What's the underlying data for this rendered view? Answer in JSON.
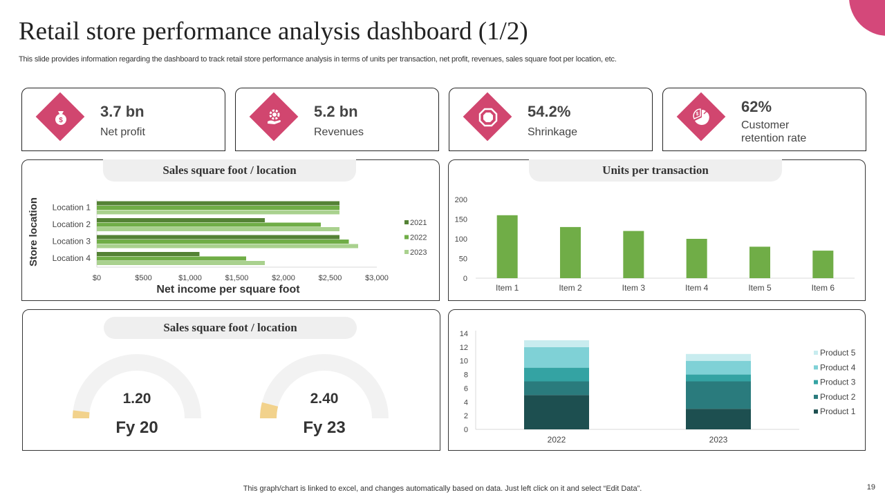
{
  "header": {
    "title": "Retail store performance analysis dashboard (1/2)",
    "subtitle": "This slide provides information regarding the dashboard to track retail store performance analysis in terms of units per transaction, net profit, revenues, sales square foot per location, etc."
  },
  "kpis": [
    {
      "value": "3.7 bn",
      "label": "Net profit",
      "icon": "money-bag-icon"
    },
    {
      "value": "5.2 bn",
      "label": "Revenues",
      "icon": "gear-hand-icon"
    },
    {
      "value": "54.2%",
      "label": "Shrinkage",
      "icon": "stop-octagon-icon"
    },
    {
      "value": "62%",
      "label": "Customer retention rate",
      "icon": "pie-chart-dollar-icon"
    }
  ],
  "colors": {
    "accent": "#d1466f",
    "green_2021": "#548235",
    "green_2022": "#70ad47",
    "green_2023": "#a9d18e",
    "bar_green": "#70ad47",
    "gauge_track": "#f2f2f2",
    "gauge_fill": "#f2d28c",
    "product1": "#1d4f50",
    "product2": "#2a7b7d",
    "product3": "#34a3a3",
    "product4": "#7fd1d6",
    "product5": "#c8ecef"
  },
  "panels": {
    "sales_location_title": "Sales square foot / location",
    "units_title": "Units per transaction",
    "gauge_title": "Sales square foot / location"
  },
  "footer": {
    "note": "This graph/chart is linked to excel,  and changes automatically based on data. Just left click on it and select “Edit Data”.",
    "page": "19"
  },
  "chart_data": [
    {
      "type": "bar",
      "orientation": "horizontal",
      "categories": [
        "Location 1",
        "Location 2",
        "Location 3",
        "Location 4"
      ],
      "series": [
        {
          "name": "2021",
          "values": [
            2600,
            1800,
            2600,
            1100
          ]
        },
        {
          "name": "2022",
          "values": [
            2600,
            2400,
            2700,
            1600
          ]
        },
        {
          "name": "2023",
          "values": [
            2600,
            2600,
            2800,
            1800
          ]
        }
      ],
      "xlabel": "Net income per square foot",
      "ylabel": "Store location",
      "xlim": [
        0,
        3000
      ],
      "xticks": [
        "$0",
        "$500",
        "$1,000",
        "$1,500",
        "$2,000",
        "$2,500",
        "$3,000"
      ],
      "legend": "right"
    },
    {
      "type": "bar",
      "categories": [
        "Item 1",
        "Item 2",
        "Item 3",
        "Item 4",
        "Item 5",
        "Item 6"
      ],
      "values": [
        160,
        130,
        120,
        100,
        80,
        70
      ],
      "ylim": [
        0,
        200
      ],
      "yticks": [
        "0",
        "50",
        "100",
        "150",
        "200"
      ]
    },
    {
      "type": "gauge",
      "items": [
        {
          "value": "1.20",
          "label": "Fy 20",
          "fraction": 0.04
        },
        {
          "value": "2.40",
          "label": "Fy 23",
          "fraction": 0.08
        }
      ]
    },
    {
      "type": "bar",
      "stacked": true,
      "categories": [
        "2022",
        "2023"
      ],
      "series": [
        {
          "name": "Product 1",
          "values": [
            5,
            3
          ]
        },
        {
          "name": "Product 2",
          "values": [
            2,
            4
          ]
        },
        {
          "name": "Product 3",
          "values": [
            2,
            1
          ]
        },
        {
          "name": "Product 4",
          "values": [
            3,
            2
          ]
        },
        {
          "name": "Product 5",
          "values": [
            1,
            1
          ]
        }
      ],
      "ylim": [
        0,
        14
      ],
      "yticks": [
        "0",
        "2",
        "4",
        "6",
        "8",
        "10",
        "12",
        "14"
      ],
      "legend": "right"
    }
  ]
}
